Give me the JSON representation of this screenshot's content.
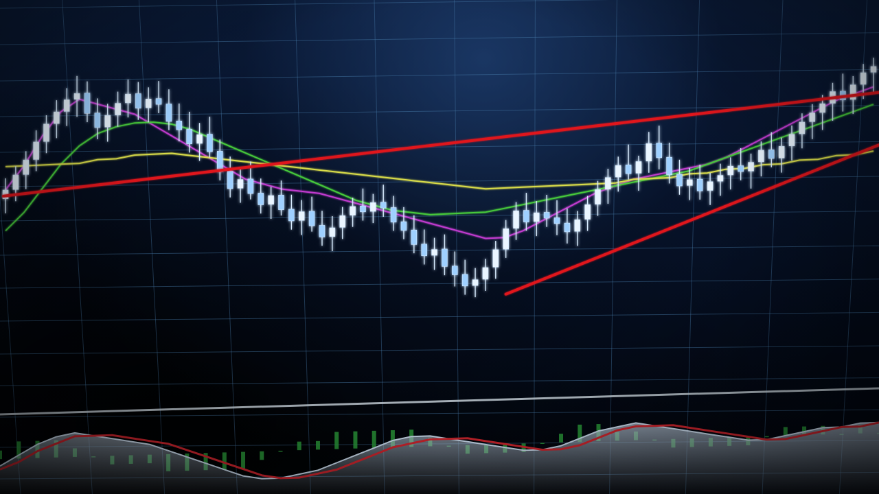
{
  "chart_data": [
    {
      "type": "line",
      "panel": "price",
      "chart_style": "candlestick",
      "grid": true,
      "legend": "none",
      "candle_color": "#9fd0ff",
      "ylim": [
        0,
        100
      ],
      "candles": [
        {
          "o": 55,
          "h": 62,
          "l": 50,
          "c": 58
        },
        {
          "o": 58,
          "h": 66,
          "l": 54,
          "c": 63
        },
        {
          "o": 63,
          "h": 71,
          "l": 58,
          "c": 68
        },
        {
          "o": 68,
          "h": 78,
          "l": 64,
          "c": 74
        },
        {
          "o": 74,
          "h": 83,
          "l": 70,
          "c": 80
        },
        {
          "o": 80,
          "h": 88,
          "l": 75,
          "c": 84
        },
        {
          "o": 84,
          "h": 92,
          "l": 79,
          "c": 88
        },
        {
          "o": 88,
          "h": 96,
          "l": 82,
          "c": 90
        },
        {
          "o": 90,
          "h": 94,
          "l": 80,
          "c": 83
        },
        {
          "o": 83,
          "h": 88,
          "l": 74,
          "c": 78
        },
        {
          "o": 78,
          "h": 86,
          "l": 73,
          "c": 82
        },
        {
          "o": 82,
          "h": 90,
          "l": 78,
          "c": 86
        },
        {
          "o": 86,
          "h": 94,
          "l": 81,
          "c": 89
        },
        {
          "o": 89,
          "h": 93,
          "l": 80,
          "c": 84
        },
        {
          "o": 84,
          "h": 91,
          "l": 79,
          "c": 87
        },
        {
          "o": 87,
          "h": 93,
          "l": 82,
          "c": 85
        },
        {
          "o": 85,
          "h": 90,
          "l": 76,
          "c": 79
        },
        {
          "o": 79,
          "h": 85,
          "l": 72,
          "c": 76
        },
        {
          "o": 76,
          "h": 82,
          "l": 68,
          "c": 71
        },
        {
          "o": 71,
          "h": 78,
          "l": 65,
          "c": 74
        },
        {
          "o": 74,
          "h": 80,
          "l": 66,
          "c": 68
        },
        {
          "o": 68,
          "h": 72,
          "l": 58,
          "c": 61
        },
        {
          "o": 61,
          "h": 66,
          "l": 52,
          "c": 55
        },
        {
          "o": 55,
          "h": 62,
          "l": 50,
          "c": 58
        },
        {
          "o": 58,
          "h": 64,
          "l": 51,
          "c": 53
        },
        {
          "o": 53,
          "h": 58,
          "l": 46,
          "c": 49
        },
        {
          "o": 49,
          "h": 55,
          "l": 44,
          "c": 52
        },
        {
          "o": 52,
          "h": 57,
          "l": 45,
          "c": 47
        },
        {
          "o": 47,
          "h": 52,
          "l": 40,
          "c": 43
        },
        {
          "o": 43,
          "h": 50,
          "l": 38,
          "c": 46
        },
        {
          "o": 46,
          "h": 51,
          "l": 39,
          "c": 41
        },
        {
          "o": 41,
          "h": 46,
          "l": 34,
          "c": 37
        },
        {
          "o": 37,
          "h": 44,
          "l": 32,
          "c": 40
        },
        {
          "o": 40,
          "h": 47,
          "l": 36,
          "c": 44
        },
        {
          "o": 44,
          "h": 50,
          "l": 40,
          "c": 47
        },
        {
          "o": 47,
          "h": 53,
          "l": 42,
          "c": 45
        },
        {
          "o": 45,
          "h": 51,
          "l": 41,
          "c": 48
        },
        {
          "o": 48,
          "h": 54,
          "l": 43,
          "c": 46
        },
        {
          "o": 46,
          "h": 50,
          "l": 38,
          "c": 41
        },
        {
          "o": 41,
          "h": 46,
          "l": 35,
          "c": 38
        },
        {
          "o": 38,
          "h": 43,
          "l": 30,
          "c": 33
        },
        {
          "o": 33,
          "h": 38,
          "l": 26,
          "c": 29
        },
        {
          "o": 29,
          "h": 35,
          "l": 24,
          "c": 31
        },
        {
          "o": 31,
          "h": 36,
          "l": 22,
          "c": 25
        },
        {
          "o": 25,
          "h": 30,
          "l": 18,
          "c": 22
        },
        {
          "o": 22,
          "h": 27,
          "l": 15,
          "c": 18
        },
        {
          "o": 18,
          "h": 24,
          "l": 14,
          "c": 20
        },
        {
          "o": 20,
          "h": 27,
          "l": 16,
          "c": 24
        },
        {
          "o": 24,
          "h": 33,
          "l": 20,
          "c": 30
        },
        {
          "o": 30,
          "h": 40,
          "l": 27,
          "c": 37
        },
        {
          "o": 37,
          "h": 46,
          "l": 33,
          "c": 43
        },
        {
          "o": 43,
          "h": 49,
          "l": 36,
          "c": 39
        },
        {
          "o": 39,
          "h": 46,
          "l": 34,
          "c": 42
        },
        {
          "o": 42,
          "h": 48,
          "l": 37,
          "c": 40
        },
        {
          "o": 40,
          "h": 46,
          "l": 34,
          "c": 38
        },
        {
          "o": 38,
          "h": 43,
          "l": 31,
          "c": 35
        },
        {
          "o": 35,
          "h": 42,
          "l": 30,
          "c": 39
        },
        {
          "o": 39,
          "h": 47,
          "l": 35,
          "c": 44
        },
        {
          "o": 44,
          "h": 52,
          "l": 40,
          "c": 49
        },
        {
          "o": 49,
          "h": 56,
          "l": 44,
          "c": 53
        },
        {
          "o": 53,
          "h": 60,
          "l": 48,
          "c": 57
        },
        {
          "o": 57,
          "h": 64,
          "l": 52,
          "c": 54
        },
        {
          "o": 54,
          "h": 60,
          "l": 48,
          "c": 58
        },
        {
          "o": 58,
          "h": 68,
          "l": 54,
          "c": 64
        },
        {
          "o": 64,
          "h": 70,
          "l": 55,
          "c": 59
        },
        {
          "o": 59,
          "h": 64,
          "l": 50,
          "c": 53
        },
        {
          "o": 53,
          "h": 58,
          "l": 46,
          "c": 49
        },
        {
          "o": 49,
          "h": 55,
          "l": 44,
          "c": 51
        },
        {
          "o": 51,
          "h": 56,
          "l": 44,
          "c": 47
        },
        {
          "o": 47,
          "h": 53,
          "l": 42,
          "c": 50
        },
        {
          "o": 50,
          "h": 56,
          "l": 45,
          "c": 52
        },
        {
          "o": 52,
          "h": 58,
          "l": 47,
          "c": 55
        },
        {
          "o": 55,
          "h": 61,
          "l": 50,
          "c": 53
        },
        {
          "o": 53,
          "h": 59,
          "l": 47,
          "c": 56
        },
        {
          "o": 56,
          "h": 63,
          "l": 51,
          "c": 60
        },
        {
          "o": 60,
          "h": 66,
          "l": 54,
          "c": 57
        },
        {
          "o": 57,
          "h": 64,
          "l": 52,
          "c": 61
        },
        {
          "o": 61,
          "h": 68,
          "l": 56,
          "c": 65
        },
        {
          "o": 65,
          "h": 72,
          "l": 60,
          "c": 69
        },
        {
          "o": 69,
          "h": 75,
          "l": 63,
          "c": 72
        },
        {
          "o": 72,
          "h": 78,
          "l": 66,
          "c": 75
        },
        {
          "o": 75,
          "h": 82,
          "l": 69,
          "c": 79
        },
        {
          "o": 79,
          "h": 85,
          "l": 72,
          "c": 76
        },
        {
          "o": 76,
          "h": 84,
          "l": 71,
          "c": 81
        },
        {
          "o": 81,
          "h": 88,
          "l": 76,
          "c": 85
        },
        {
          "o": 85,
          "h": 90,
          "l": 78,
          "c": 87
        }
      ],
      "series": [
        {
          "color": "#c23ad0",
          "values": [
            58,
            66,
            76,
            84,
            88,
            86,
            84,
            82,
            78,
            74,
            70,
            66,
            62,
            58,
            56,
            54,
            53,
            52,
            50,
            48,
            46,
            44,
            42,
            40,
            38,
            36,
            34,
            34,
            36,
            39,
            42,
            45,
            48,
            50,
            52,
            53,
            54,
            55,
            56,
            58,
            61,
            64,
            67,
            70,
            73,
            76,
            78,
            80
          ]
        },
        {
          "color": "#46c93a",
          "values": [
            44,
            50,
            58,
            66,
            72,
            76,
            78,
            79,
            79,
            78,
            76,
            73,
            70,
            67,
            64,
            61,
            58,
            55,
            52,
            49,
            47,
            45,
            44,
            43,
            43,
            43,
            43,
            44,
            45,
            46,
            47,
            48,
            49,
            50,
            51,
            52,
            53,
            54,
            56,
            58,
            60,
            62,
            64,
            66,
            68,
            70,
            72,
            74
          ]
        },
        {
          "color": "#d9dc4a",
          "values": [
            66,
            66,
            66,
            66,
            66,
            67,
            67,
            68,
            68,
            68,
            67,
            66,
            65,
            64,
            63,
            62,
            61,
            60,
            59,
            58,
            57,
            56,
            55,
            54,
            53,
            52,
            51,
            51,
            51,
            51,
            51,
            51,
            51,
            51,
            52,
            52,
            52,
            53,
            53,
            54,
            54,
            55,
            55,
            56,
            56,
            57,
            57,
            58
          ]
        }
      ],
      "trendlines": [
        {
          "color": "#e0161e",
          "from": [
            0,
            56
          ],
          "to": [
            1,
            78
          ]
        },
        {
          "color": "#e0161e",
          "from": [
            0.47,
            16
          ],
          "to": [
            1,
            60
          ]
        }
      ]
    },
    {
      "type": "line",
      "panel": "oscillator",
      "grid": true,
      "legend": "none",
      "ylim": [
        -10,
        10
      ],
      "series": [
        {
          "color": "#c7d7e8",
          "values": [
            -2,
            1,
            4,
            6,
            7,
            6,
            5,
            4,
            3,
            1,
            -1,
            -3,
            -5,
            -7,
            -8,
            -8,
            -7,
            -6,
            -4,
            -2,
            0,
            2,
            3,
            3,
            2,
            1,
            0,
            -1,
            -2,
            -2,
            -1,
            1,
            3,
            4,
            5,
            4,
            3,
            2,
            1,
            0,
            -1,
            -1,
            0,
            1,
            2,
            2,
            3,
            3
          ]
        },
        {
          "color": "#c8242c",
          "values": [
            -3,
            -1,
            2,
            4,
            6,
            6,
            6,
            5,
            4,
            3,
            1,
            -1,
            -3,
            -5,
            -7,
            -8,
            -8,
            -7,
            -6,
            -4,
            -2,
            0,
            1,
            2,
            2,
            2,
            1,
            0,
            -1,
            -2,
            -2,
            -1,
            1,
            3,
            4,
            4,
            4,
            3,
            2,
            1,
            0,
            -1,
            -1,
            0,
            1,
            2,
            2,
            3
          ]
        }
      ],
      "histogram_color": "#2a9a3a",
      "histogram": [
        1,
        2,
        2,
        2,
        1,
        0,
        -1,
        -1,
        -1,
        -2,
        -2,
        -2,
        -2,
        -2,
        -1,
        0,
        1,
        1,
        2,
        2,
        2,
        2,
        2,
        1,
        0,
        -1,
        -1,
        -1,
        -1,
        0,
        1,
        2,
        2,
        1,
        1,
        0,
        -1,
        -1,
        -1,
        -1,
        -1,
        0,
        1,
        1,
        1,
        0,
        1,
        0
      ]
    }
  ]
}
